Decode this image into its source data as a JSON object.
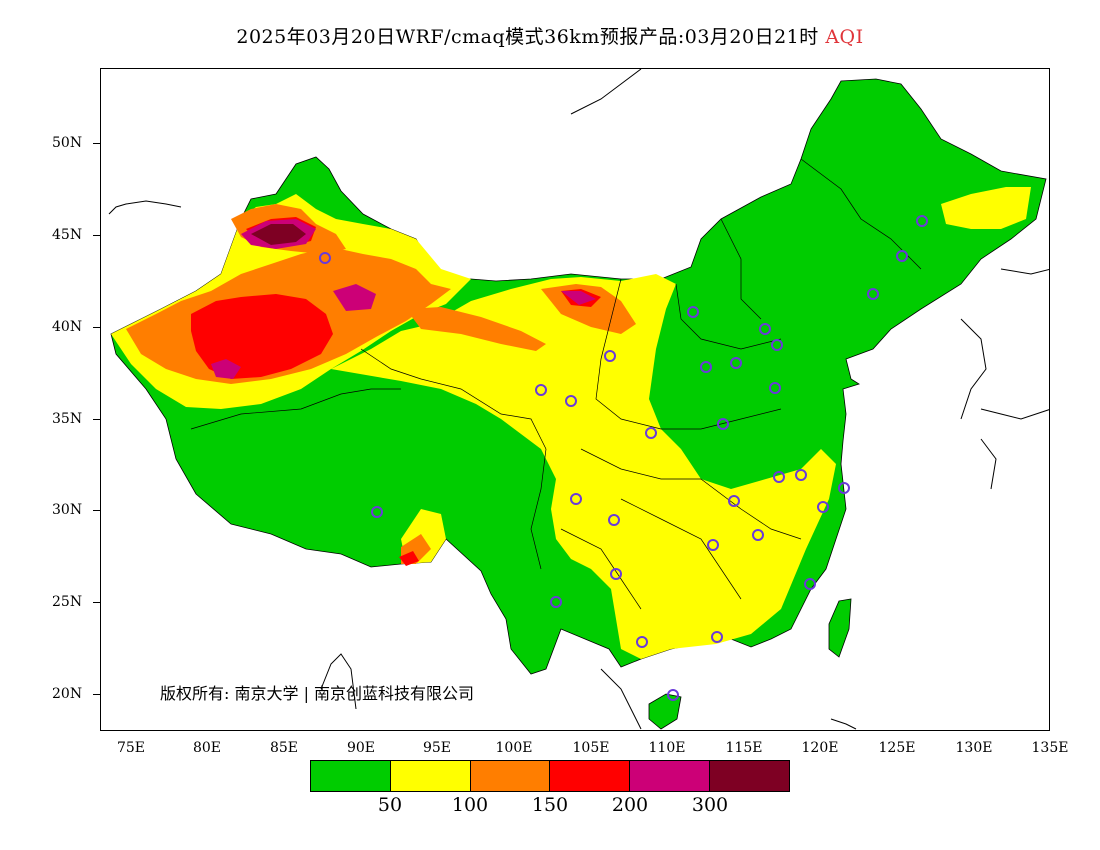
{
  "title": {
    "main": "2025年03月20日WRF/cmaq模式36km预报产品:03月20日21时",
    "variable": "AQI"
  },
  "axes": {
    "lat_labels": [
      "50N",
      "45N",
      "40N",
      "35N",
      "30N",
      "25N",
      "20N"
    ],
    "lon_labels": [
      "75E",
      "80E",
      "85E",
      "90E",
      "95E",
      "100E",
      "105E",
      "110E",
      "115E",
      "120E",
      "125E",
      "130E",
      "135E"
    ]
  },
  "legend": {
    "colors": [
      "#00cc00",
      "#ffff00",
      "#ff7e00",
      "#ff0000",
      "#cc0077",
      "#7e0023"
    ],
    "labels": [
      "50",
      "100",
      "150",
      "200",
      "300"
    ]
  },
  "copyright": "版权所有: 南京大学 | 南京创蓝科技有限公司",
  "chart_data": {
    "type": "heatmap",
    "xlim": [
      73,
      135
    ],
    "ylim": [
      18,
      54
    ],
    "color_scale_breaks": [
      50,
      100,
      150,
      200,
      300
    ]
  }
}
